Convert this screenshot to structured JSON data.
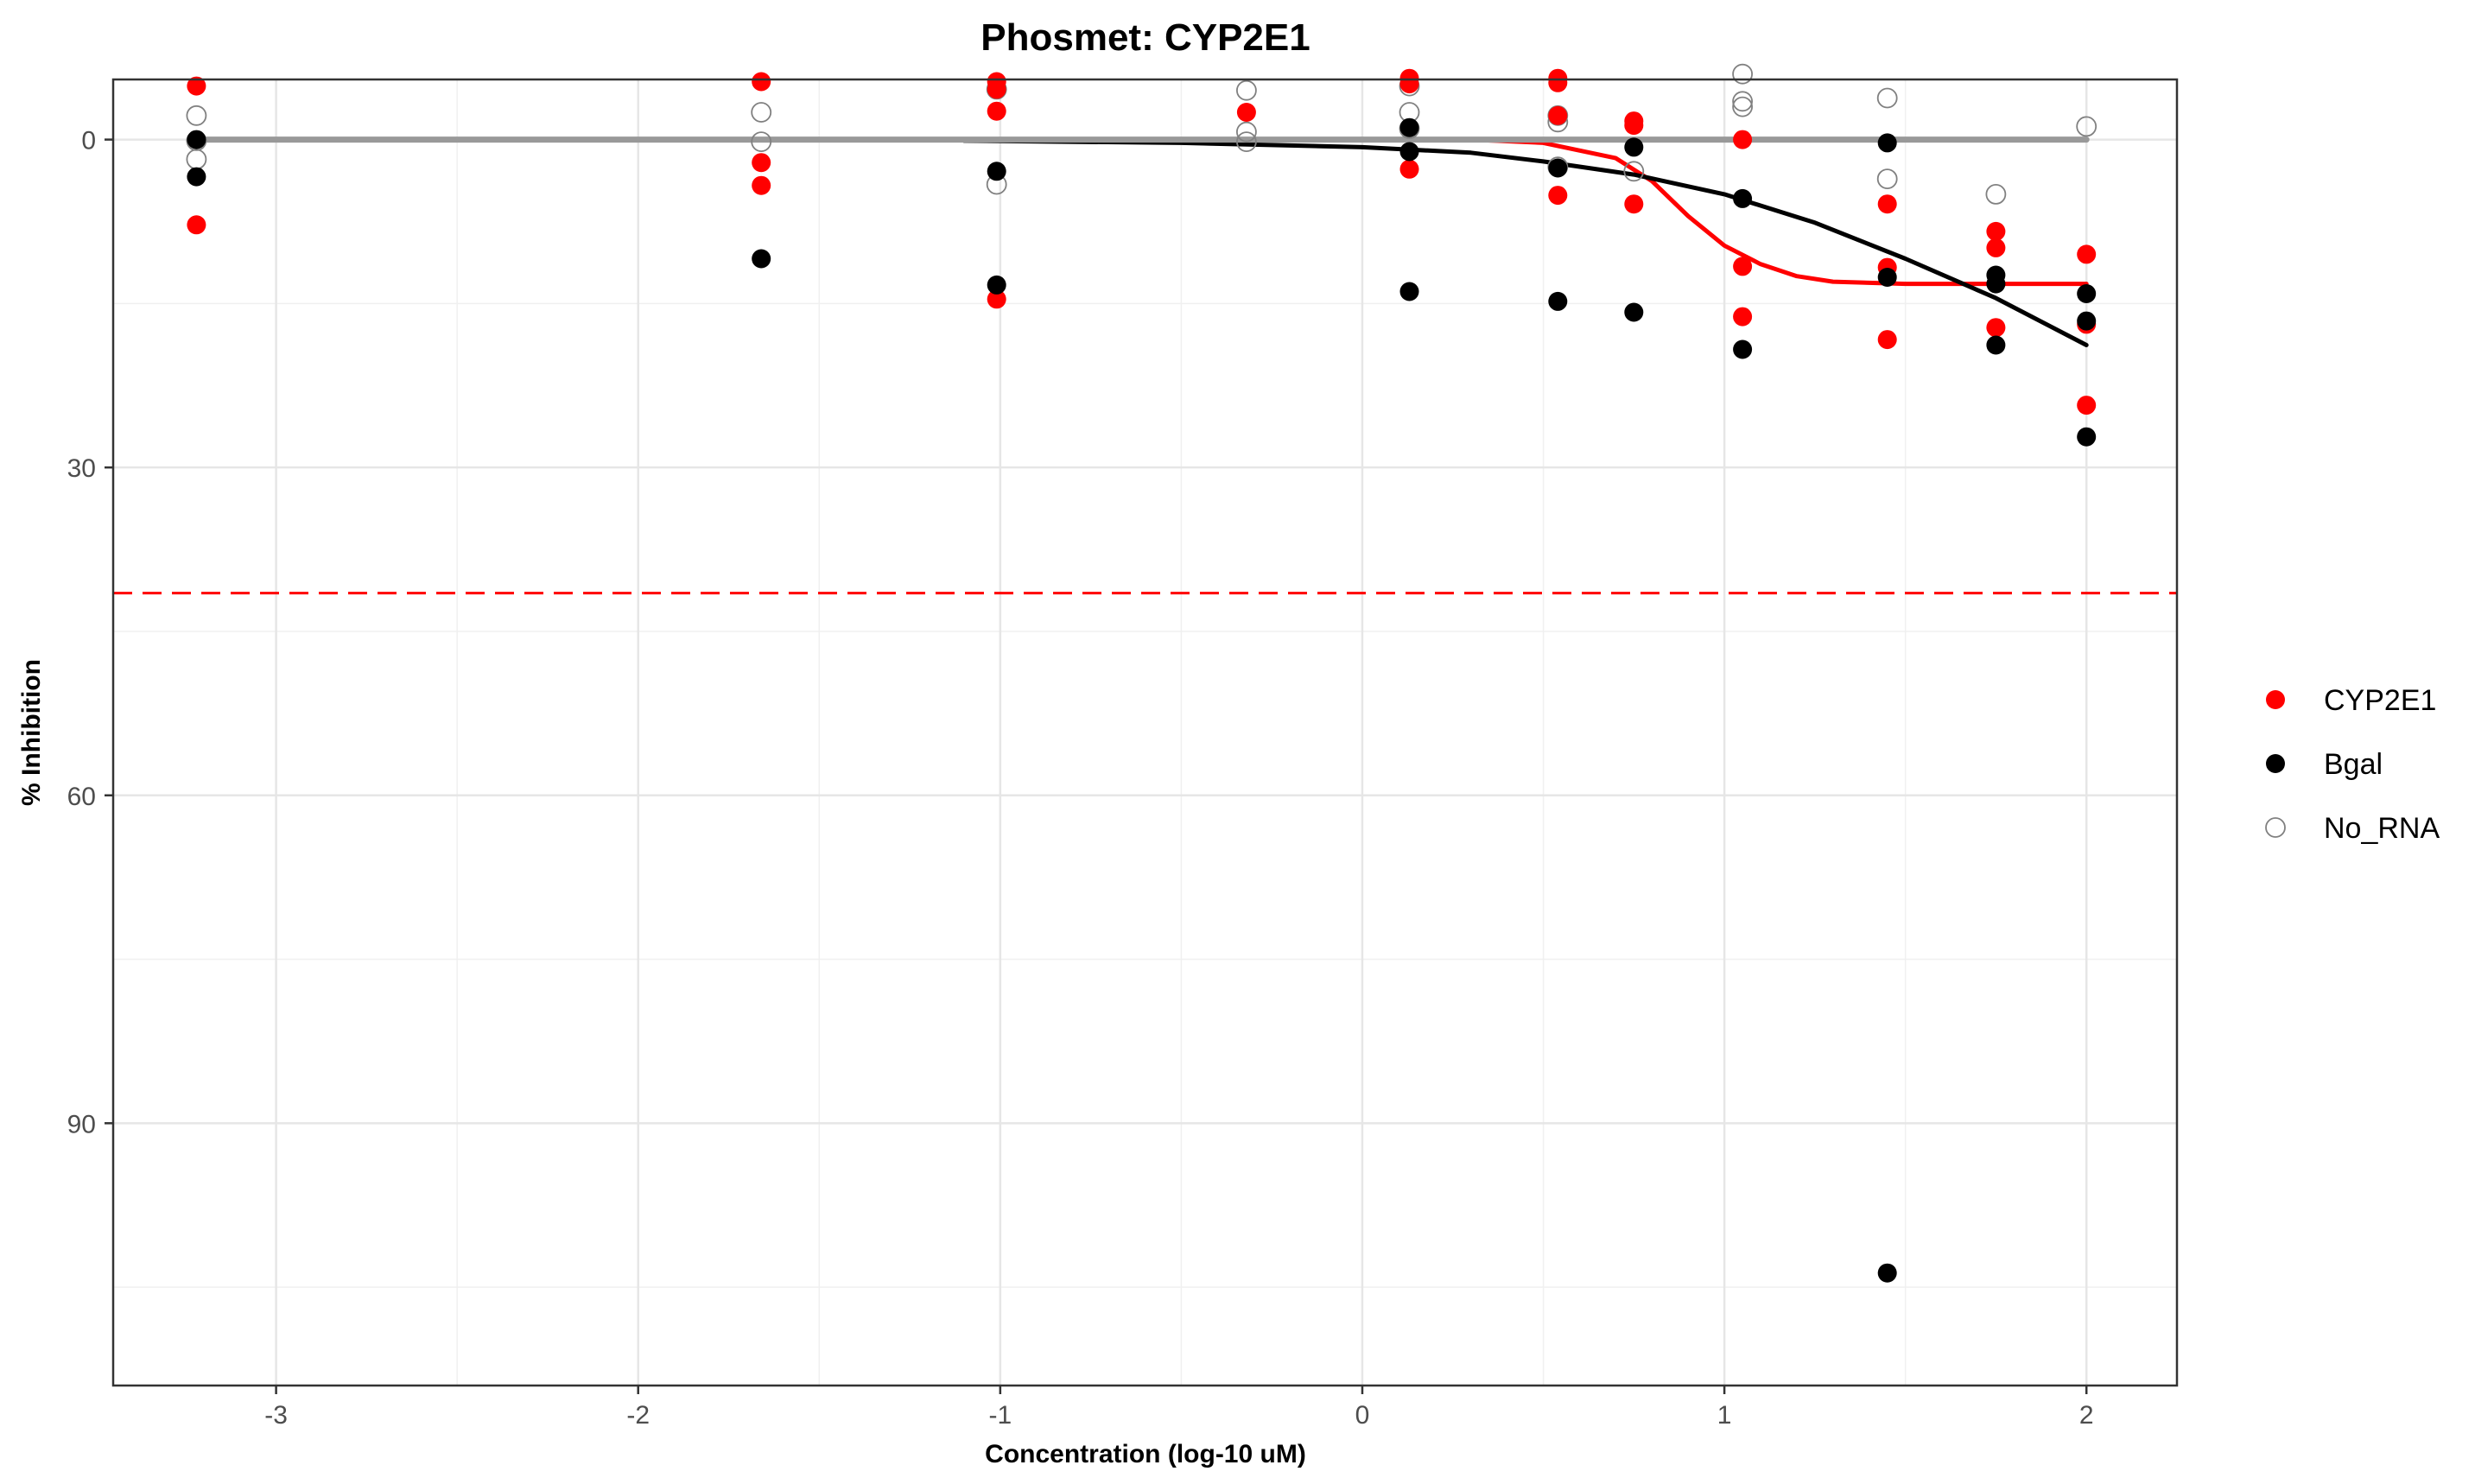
{
  "chart_data": {
    "type": "scatter",
    "title": "Phosmet: CYP2E1",
    "xlabel": "Concentration (log-10 uM)",
    "ylabel": "% Inhibition",
    "xlim": [
      -3.45,
      2.25
    ],
    "ylim": [
      -5.5,
      114
    ],
    "y_reversed": true,
    "x_ticks": [
      -3,
      -2,
      -1,
      0,
      1,
      2
    ],
    "x_tick_labels": [
      "-3",
      "-2",
      "-1",
      "0",
      "1",
      "2"
    ],
    "y_ticks": [
      0,
      30,
      60,
      90
    ],
    "y_tick_labels": [
      "0",
      "30",
      "60",
      "90"
    ],
    "grid": true,
    "legend_position": "right",
    "reference_line": {
      "y": 41.5,
      "color": "#ff0000",
      "style": "dashed"
    },
    "series": [
      {
        "name": "CYP2E1",
        "color": "#ff0000",
        "marker": "filled-circle",
        "points": [
          [
            -3.22,
            -4.9
          ],
          [
            -3.22,
            7.8
          ],
          [
            -1.66,
            -5.3
          ],
          [
            -1.66,
            2.1
          ],
          [
            -1.66,
            4.2
          ],
          [
            -1.01,
            -5.3
          ],
          [
            -1.01,
            -4.6
          ],
          [
            -1.01,
            -2.6
          ],
          [
            -1.01,
            14.6
          ],
          [
            -0.32,
            -2.5
          ],
          [
            0.13,
            -5.6
          ],
          [
            0.13,
            -5.1
          ],
          [
            0.13,
            2.7
          ],
          [
            0.54,
            -5.6
          ],
          [
            0.54,
            -5.2
          ],
          [
            0.54,
            -2.2
          ],
          [
            0.54,
            5.1
          ],
          [
            0.75,
            -1.7
          ],
          [
            0.75,
            -1.3
          ],
          [
            0.75,
            5.9
          ],
          [
            1.05,
            0.0
          ],
          [
            1.05,
            11.6
          ],
          [
            1.05,
            16.2
          ],
          [
            1.45,
            5.9
          ],
          [
            1.45,
            11.7
          ],
          [
            1.45,
            18.3
          ],
          [
            1.75,
            8.4
          ],
          [
            1.75,
            9.9
          ],
          [
            1.75,
            17.2
          ],
          [
            2.0,
            10.5
          ],
          [
            2.0,
            16.9
          ],
          [
            2.0,
            24.3
          ]
        ]
      },
      {
        "name": "Bgal",
        "color": "#000000",
        "marker": "filled-circle",
        "points": [
          [
            -3.22,
            0.0
          ],
          [
            -3.22,
            3.4
          ],
          [
            -1.66,
            10.9
          ],
          [
            -1.01,
            2.9
          ],
          [
            -1.01,
            13.3
          ],
          [
            0.13,
            -1.1
          ],
          [
            0.13,
            1.1
          ],
          [
            0.13,
            13.9
          ],
          [
            0.54,
            2.6
          ],
          [
            0.54,
            14.8
          ],
          [
            0.75,
            0.7
          ],
          [
            0.75,
            15.8
          ],
          [
            1.05,
            5.4
          ],
          [
            1.05,
            19.2
          ],
          [
            1.45,
            0.3
          ],
          [
            1.45,
            12.6
          ],
          [
            1.45,
            103.7
          ],
          [
            1.75,
            12.4
          ],
          [
            1.75,
            13.2
          ],
          [
            1.75,
            18.8
          ],
          [
            2.0,
            14.1
          ],
          [
            2.0,
            16.6
          ],
          [
            2.0,
            27.2
          ]
        ]
      },
      {
        "name": "No_RNA",
        "color": "#808080",
        "marker": "open-circle",
        "points": [
          [
            -3.22,
            -2.2
          ],
          [
            -3.22,
            0.1
          ],
          [
            -3.22,
            1.8
          ],
          [
            -1.66,
            -2.5
          ],
          [
            -1.66,
            0.2
          ],
          [
            -1.01,
            -4.6
          ],
          [
            -1.01,
            4.1
          ],
          [
            -0.32,
            -4.5
          ],
          [
            -0.32,
            -0.7
          ],
          [
            -0.32,
            0.2
          ],
          [
            0.13,
            -4.9
          ],
          [
            0.13,
            -2.5
          ],
          [
            0.13,
            -1.0
          ],
          [
            0.54,
            -2.2
          ],
          [
            0.54,
            -1.6
          ],
          [
            0.54,
            2.5
          ],
          [
            0.75,
            2.9
          ],
          [
            1.05,
            -6.0
          ],
          [
            1.05,
            -3.5
          ],
          [
            1.05,
            -3.0
          ],
          [
            1.45,
            -3.8
          ],
          [
            1.45,
            3.6
          ],
          [
            1.75,
            5.0
          ],
          [
            2.0,
            -1.2
          ]
        ]
      }
    ],
    "fit_curves": [
      {
        "name": "CYP2E1",
        "color": "#ff0000",
        "points": [
          [
            0.0,
            0.0
          ],
          [
            0.3,
            0.0
          ],
          [
            0.5,
            0.3
          ],
          [
            0.7,
            1.7
          ],
          [
            0.8,
            3.8
          ],
          [
            0.9,
            7.0
          ],
          [
            1.0,
            9.7
          ],
          [
            1.1,
            11.4
          ],
          [
            1.2,
            12.5
          ],
          [
            1.3,
            13.0
          ],
          [
            1.5,
            13.2
          ],
          [
            2.0,
            13.2
          ]
        ]
      },
      {
        "name": "Bgal",
        "color": "#000000",
        "points": [
          [
            -1.1,
            0.1
          ],
          [
            -0.5,
            0.3
          ],
          [
            0.0,
            0.7
          ],
          [
            0.3,
            1.2
          ],
          [
            0.5,
            2.0
          ],
          [
            0.75,
            3.2
          ],
          [
            1.0,
            5.0
          ],
          [
            1.25,
            7.6
          ],
          [
            1.5,
            10.9
          ],
          [
            1.75,
            14.5
          ],
          [
            2.0,
            18.8
          ]
        ]
      },
      {
        "name": "No_RNA",
        "color": "#999999",
        "points": [
          [
            -3.22,
            0.0
          ],
          [
            2.0,
            0.0
          ]
        ]
      }
    ]
  }
}
